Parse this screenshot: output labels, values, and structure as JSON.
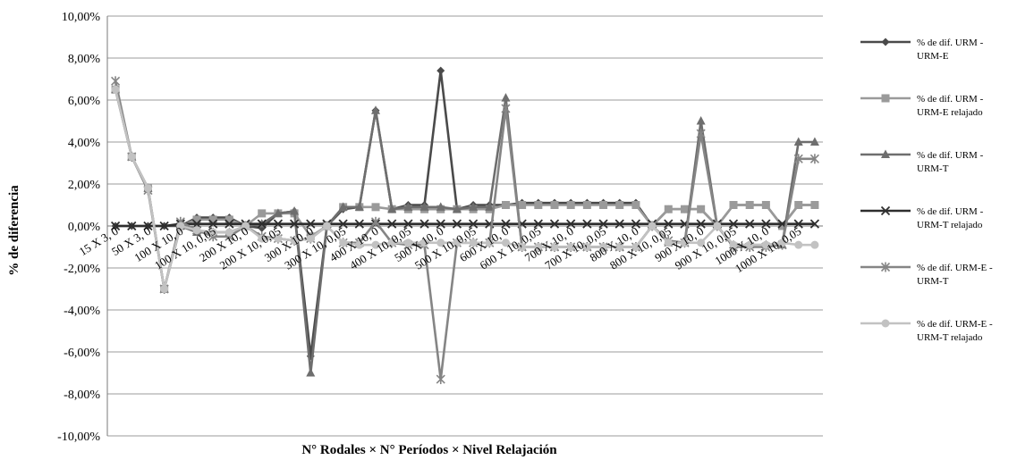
{
  "chart_data": {
    "type": "line",
    "xlabel": "N° Rodales × N° Períodos × Nivel Relajación",
    "ylabel": "% de diferencia",
    "ylim": [
      -10,
      10
    ],
    "y_tick_step": 2,
    "y_tick_labels": [
      "-10,00%",
      "-8,00%",
      "-6,00%",
      "-4,00%",
      "-2,00%",
      "0,00%",
      "2,00%",
      "4,00%",
      "6,00%",
      "8,00%",
      "10,00%"
    ],
    "grid": "horizontal",
    "legend_position": "right",
    "x_tick_labels": [
      {
        "index": 0,
        "label": "15 X 3, 0"
      },
      {
        "index": 2,
        "label": "50 X 3, 0"
      },
      {
        "index": 4,
        "label": "100 X 10, 0"
      },
      {
        "index": 6,
        "label": "100 X 10, 0,05"
      },
      {
        "index": 8,
        "label": "200 X 10, 0"
      },
      {
        "index": 10,
        "label": "200 X 10, 0,05"
      },
      {
        "index": 12,
        "label": "300 X 10, 0"
      },
      {
        "index": 14,
        "label": "300 X 10, 0,05"
      },
      {
        "index": 16,
        "label": "400 X 10, 0"
      },
      {
        "index": 18,
        "label": "400 X 10, 0,05"
      },
      {
        "index": 20,
        "label": "500 X 10, 0"
      },
      {
        "index": 22,
        "label": "500 X 10, 0,05"
      },
      {
        "index": 24,
        "label": "600 X 10, 0"
      },
      {
        "index": 26,
        "label": "600 X 10, 0,05"
      },
      {
        "index": 28,
        "label": "700 X 10, 0"
      },
      {
        "index": 30,
        "label": "700 X 10, 0,05"
      },
      {
        "index": 32,
        "label": "800 X 10, 0"
      },
      {
        "index": 34,
        "label": "800 X 10, 0,05"
      },
      {
        "index": 36,
        "label": "900 X 10, 0"
      },
      {
        "index": 38,
        "label": "900 X 10, 0,05"
      },
      {
        "index": 40,
        "label": "1000 X 10, 0"
      },
      {
        "index": 42,
        "label": "1000 X 10, 0,05"
      }
    ],
    "series": [
      {
        "name": "% de dif. URM - URM-E",
        "color": "#4a4a4a",
        "marker": "diamond",
        "values": [
          0,
          0,
          0,
          0,
          0,
          0.4,
          0.4,
          0.4,
          0,
          -0.1,
          0.6,
          0.7,
          -6.2,
          0,
          0.8,
          0.9,
          5.5,
          0.8,
          1.0,
          1.0,
          7.4,
          0.8,
          1.0,
          1.0,
          1.0,
          1.1,
          1.1,
          1.1,
          1.1,
          1.1,
          1.1,
          1.1,
          1.1,
          0,
          0.8,
          0.8,
          0.8,
          0,
          1.0,
          1.0,
          1.0,
          0,
          1.0,
          1.0
        ]
      },
      {
        "name": "% de dif. URM - URM-E relajado",
        "color": "#9a9a9a",
        "marker": "square",
        "values": [
          6.5,
          3.3,
          1.8,
          -3.0,
          0,
          0.3,
          0.3,
          0.3,
          0,
          0.6,
          0.6,
          0.6,
          -0.5,
          0,
          0.9,
          0.9,
          0.9,
          0.8,
          0.8,
          0.8,
          0.8,
          0.8,
          0.8,
          0.8,
          1.0,
          1.0,
          1.0,
          1.0,
          1.0,
          1.0,
          1.0,
          1.0,
          1.0,
          0,
          0.8,
          0.8,
          0.8,
          0,
          1.0,
          1.0,
          1.0,
          0,
          1.0,
          1.0
        ]
      },
      {
        "name": "% de dif. URM - URM-T",
        "color": "#6e6e6e",
        "marker": "triangle",
        "values": [
          6.5,
          3.3,
          1.8,
          -3.0,
          0,
          -0.3,
          -0.3,
          -0.3,
          0,
          0.1,
          0.6,
          0.7,
          -7.0,
          0,
          0.9,
          0.9,
          5.5,
          0.8,
          0.9,
          0.9,
          0.9,
          0.8,
          0.9,
          0.9,
          6.1,
          -1.0,
          -1.0,
          -1.0,
          -1.0,
          -1.0,
          -1.0,
          -1.0,
          -1.0,
          0,
          -0.8,
          -0.8,
          5.0,
          0,
          -0.9,
          -0.9,
          -0.9,
          -0.9,
          4.0,
          4.0
        ]
      },
      {
        "name": "% de dif. URM - URM-T relajado",
        "color": "#2e2e2e",
        "marker": "x",
        "values": [
          0,
          0,
          0,
          0,
          0.1,
          0.1,
          0.1,
          0.1,
          0.1,
          0.1,
          0.1,
          0.1,
          0.1,
          0.1,
          0.1,
          0.1,
          0.1,
          0.1,
          0.1,
          0.1,
          0.1,
          0.1,
          0.1,
          0.1,
          0.1,
          0.1,
          0.1,
          0.1,
          0.1,
          0.1,
          0.1,
          0.1,
          0.1,
          0.1,
          0.1,
          0.1,
          0.1,
          0.1,
          0.1,
          0.1,
          0.1,
          0.1,
          0.1,
          0.1
        ]
      },
      {
        "name": "% de dif. URM-E - URM-T",
        "color": "#858585",
        "marker": "star",
        "values": [
          6.9,
          3.3,
          1.7,
          -3.0,
          0.2,
          -0.2,
          -0.5,
          -0.5,
          0,
          -0.5,
          -0.6,
          -0.7,
          -0.6,
          0,
          -0.8,
          -0.8,
          0.2,
          -0.8,
          -0.9,
          -0.9,
          -7.3,
          -0.8,
          -0.8,
          -0.8,
          5.6,
          -1.0,
          -1.0,
          -1.0,
          -1.0,
          -1.0,
          -1.0,
          -1.0,
          -1.0,
          0,
          -0.7,
          -0.8,
          4.4,
          0,
          -1.0,
          -1.0,
          -1.0,
          -0.9,
          3.2,
          3.2
        ]
      },
      {
        "name": "% de dif. URM-E - URM-T relajado",
        "color": "#c2c2c2",
        "marker": "circle",
        "values": [
          6.5,
          3.3,
          1.8,
          -3.0,
          0,
          -0.2,
          -0.3,
          -0.3,
          0,
          -0.6,
          -0.6,
          -0.7,
          -0.6,
          0,
          -0.8,
          -0.9,
          -0.9,
          -0.8,
          -0.8,
          -0.8,
          -0.8,
          -0.8,
          -0.8,
          -0.8,
          -0.8,
          -1.0,
          -1.0,
          -1.0,
          -1.0,
          -1.0,
          -1.0,
          -1.0,
          -1.0,
          0,
          -0.8,
          -0.8,
          -0.8,
          0,
          -0.9,
          -0.9,
          -0.9,
          -0.8,
          -0.9,
          -0.9
        ]
      }
    ],
    "legend": [
      {
        "line1": "% de dif. URM -",
        "line2": "URM-E"
      },
      {
        "line1": "% de dif. URM -",
        "line2": "URM-E relajado"
      },
      {
        "line1": "% de dif. URM -",
        "line2": "URM-T"
      },
      {
        "line1": "% de dif. URM -",
        "line2": "URM-T relajado"
      },
      {
        "line1": "% de dif. URM-E -",
        "line2": "URM-T"
      },
      {
        "line1": "% de dif. URM-E -",
        "line2": "URM-T relajado"
      }
    ]
  }
}
